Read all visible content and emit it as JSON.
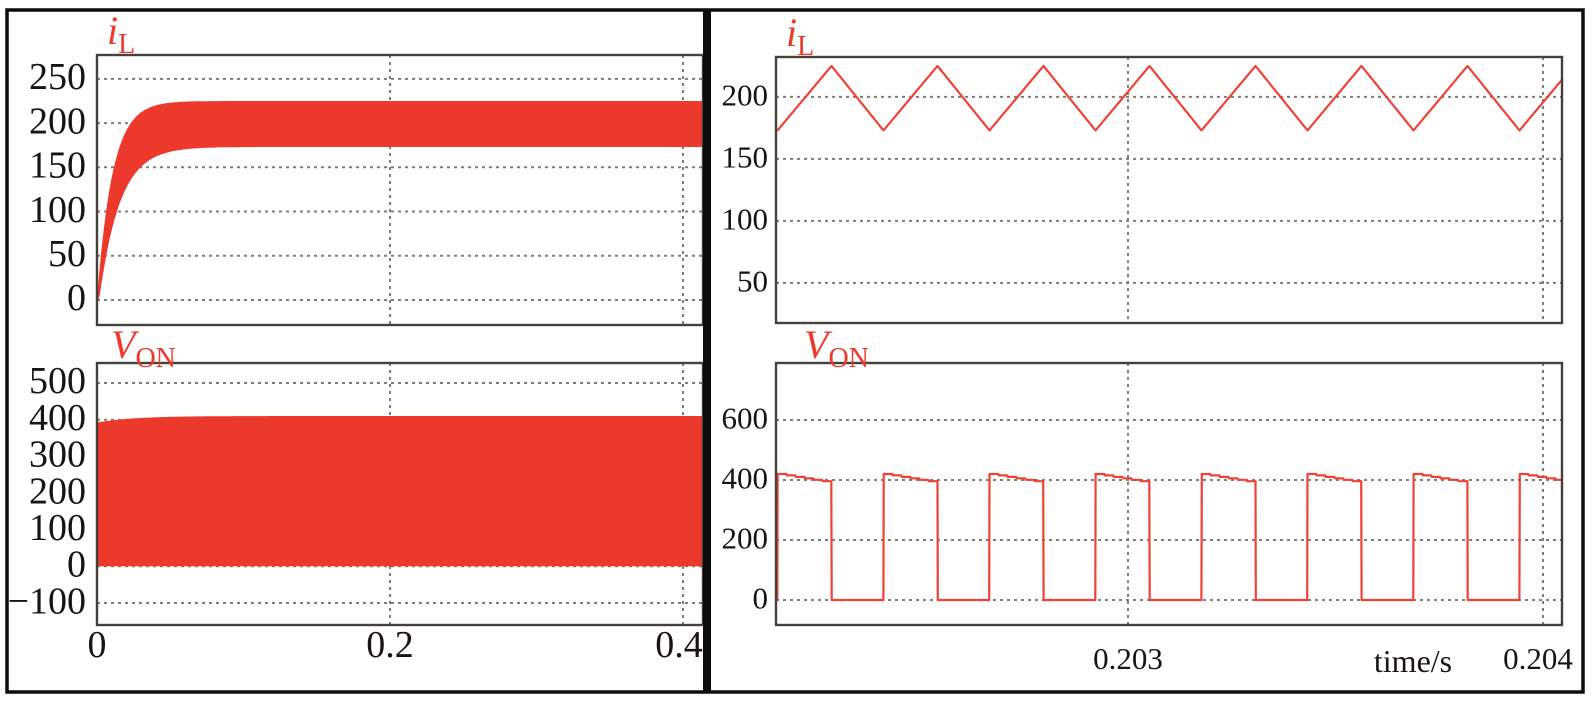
{
  "figure": {
    "kind": "simulation-waveform-figure",
    "xaxis_label": "time/s",
    "colors": {
      "trace": "#ed392c",
      "trace_line": "#f04136",
      "grid": "#847c74",
      "axis": "#46403a",
      "text": "#181410",
      "title": "#ed392c",
      "background": "#ffffff",
      "frame": "#0e0c0a"
    }
  },
  "chart_data": [
    {
      "id": "il-startup",
      "type": "area",
      "title": {
        "base": "i",
        "sub": "L"
      },
      "x": {
        "min": 0,
        "max": 0.41365,
        "tick_values": [
          0,
          0.2,
          0.4
        ],
        "tick_labels": [
          "0",
          "0.2",
          "0.4"
        ],
        "show_tick_labels": false,
        "grid": true
      },
      "y": {
        "min": -28.3,
        "max": 277,
        "tick_values": [
          250,
          200,
          150,
          100,
          50,
          0
        ],
        "ticks": [
          "250",
          "200",
          "150",
          "100",
          "50",
          "0"
        ],
        "grid": true
      },
      "series": {
        "kind": "envelope-band",
        "name": "inductor current startup envelope",
        "top_envelope": {
          "start": 0,
          "settle": 225,
          "tau": 0.0105
        },
        "bottom_envelope": {
          "start": 0,
          "settle": 173,
          "tau": 0.014,
          "delay": 0.0015
        },
        "steady_ripple": {
          "min": 173,
          "max": 225
        }
      }
    },
    {
      "id": "von-startup",
      "type": "area",
      "title": {
        "base": "V",
        "sub": "ON"
      },
      "x": {
        "min": 0,
        "max": 0.41365,
        "tick_values": [
          0,
          0.2,
          0.4
        ],
        "tick_labels": [
          "0",
          "0.2",
          "0.4"
        ],
        "show_tick_labels": true,
        "grid": true
      },
      "y": {
        "min": -160,
        "max": 554.5,
        "tick_values": [
          500,
          400,
          300,
          200,
          100,
          0,
          -100
        ],
        "ticks": [
          "500",
          "400",
          "300",
          "200",
          "100",
          "0",
          "−100"
        ],
        "grid": true
      },
      "series": {
        "kind": "filled-band",
        "name": "switch voltage startup band",
        "top_edge": {
          "start": 392,
          "settle": 410,
          "tau": 0.025
        },
        "bottom_edge": 0
      }
    },
    {
      "id": "il-zoom",
      "type": "line",
      "title": {
        "base": "i",
        "sub": "L"
      },
      "x": {
        "min": 0.2021518,
        "max": 0.2040458,
        "tick_values": [
          0.203,
          0.204
        ],
        "tick_labels": [
          "0.203",
          "0.204"
        ],
        "show_tick_labels": false,
        "grid": true
      },
      "y": {
        "min": 17.7,
        "max": 232.2,
        "tick_values": [
          200,
          150,
          100,
          50
        ],
        "ticks": [
          "200",
          "150",
          "100",
          "50"
        ],
        "grid": true
      },
      "series": {
        "kind": "triangle",
        "name": "inductor current ripple",
        "min": 173,
        "max": 225,
        "period_s": 0.00025542,
        "rise_s": 0.00013012,
        "trough_time": 0.20215542
      }
    },
    {
      "id": "von-zoom",
      "type": "line",
      "title": {
        "base": "V",
        "sub": "ON"
      },
      "x": {
        "min": 0.2021518,
        "max": 0.2040458,
        "tick_values": [
          0.203,
          0.204
        ],
        "tick_labels": [
          "0.203",
          "0.204"
        ],
        "show_tick_labels": true,
        "grid": true,
        "axis_label": "time/s"
      },
      "y": {
        "min": -83.3,
        "max": 790,
        "tick_values": [
          600,
          400,
          200,
          0
        ],
        "ticks": [
          "600",
          "400",
          "200",
          "0"
        ],
        "grid": true
      },
      "series": {
        "kind": "pulse",
        "name": "switch voltage pulses",
        "high_start": 420,
        "high_end": 396,
        "low": 0,
        "period_s": 0.00025542,
        "high_s": 0.00013012,
        "rise_time": 0.20215542,
        "droop_steps": 6
      }
    }
  ]
}
